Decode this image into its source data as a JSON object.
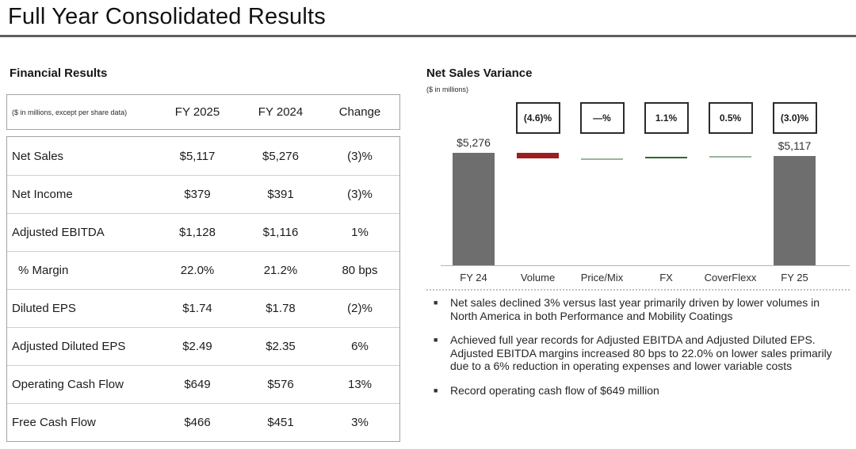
{
  "slide": {
    "title": "Full Year Consolidated Results"
  },
  "financial_results": {
    "heading": "Financial Results",
    "note": "($ in millions, except per share data)",
    "columns": [
      "FY 2025",
      "FY 2024",
      "Change"
    ],
    "rows": [
      {
        "label": "Net Sales",
        "fy2025": "$5,117",
        "fy2024": "$5,276",
        "change": "(3)%",
        "indent": false
      },
      {
        "label": "Net Income",
        "fy2025": "$379",
        "fy2024": "$391",
        "change": "(3)%",
        "indent": false
      },
      {
        "label": "Adjusted EBITDA",
        "fy2025": "$1,128",
        "fy2024": "$1,116",
        "change": "1%",
        "indent": false
      },
      {
        "label": "% Margin",
        "fy2025": "22.0%",
        "fy2024": "21.2%",
        "change": "80 bps",
        "indent": true
      },
      {
        "label": "Diluted EPS",
        "fy2025": "$1.74",
        "fy2024": "$1.78",
        "change": "(2)%",
        "indent": false
      },
      {
        "label": "Adjusted Diluted EPS",
        "fy2025": "$2.49",
        "fy2024": "$2.35",
        "change": "6%",
        "indent": false
      },
      {
        "label": "Operating Cash Flow",
        "fy2025": "$649",
        "fy2024": "$576",
        "change": "13%",
        "indent": false
      },
      {
        "label": "Free Cash Flow",
        "fy2025": "$466",
        "fy2024": "$451",
        "change": "3%",
        "indent": false
      }
    ]
  },
  "chart_data": {
    "type": "waterfall",
    "title": "Net Sales Variance",
    "subtitle": "($ in millions)",
    "categories": [
      "FY 24",
      "Volume",
      "Price/Mix",
      "FX",
      "CoverFlexx",
      "FY 25"
    ],
    "ylim": [
      0,
      5600
    ],
    "legend": "none",
    "grid": false,
    "columns": [
      {
        "label": "FY 24",
        "type": "total",
        "value": 5276,
        "value_label": "$5,276",
        "pct_label": "",
        "color": "#6e6e6e"
      },
      {
        "label": "Volume",
        "type": "delta",
        "value": -243,
        "value_label": "",
        "pct_label": "(4.6)%",
        "color": "#9b1f1f"
      },
      {
        "label": "Price/Mix",
        "type": "delta",
        "value": 0,
        "value_label": "",
        "pct_label": "—%",
        "color": "#9bb49b"
      },
      {
        "label": "FX",
        "type": "delta",
        "value": 58,
        "value_label": "",
        "pct_label": "1.1%",
        "color": "#2f672f"
      },
      {
        "label": "CoverFlexx",
        "type": "delta",
        "value": 26,
        "value_label": "",
        "pct_label": "0.5%",
        "color": "#9bb49b"
      },
      {
        "label": "FY 25",
        "type": "total",
        "value": 5117,
        "value_label": "$5,117",
        "pct_label": "(3.0)%",
        "color": "#6e6e6e"
      }
    ]
  },
  "bullets": [
    "Net sales declined 3% versus last year primarily driven by lower volumes in North America in both Performance and Mobility Coatings",
    "Achieved full year records for Adjusted EBITDA and Adjusted Diluted EPS. Adjusted EBITDA margins increased 80 bps to 22.0% on lower sales primarily due to a 6% reduction in operating expenses and lower variable costs",
    "Record operating cash flow of $649 million"
  ]
}
